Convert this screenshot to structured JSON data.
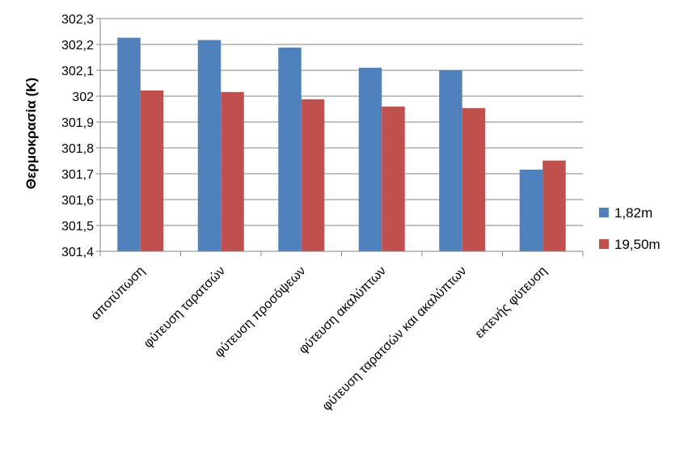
{
  "chart_data": {
    "type": "bar",
    "categories": [
      "αποτύπωση",
      "φύτευση ταρατσών",
      "φύτευση προσόψεων",
      "φύτευση ακαλύπτων",
      "φύτευση ταρατσών και ακαλύπτων",
      "εκτενής φύτευση"
    ],
    "series": [
      {
        "name": "1,82m",
        "color": "#4f81bd",
        "values": [
          302.226,
          302.217,
          302.188,
          302.11,
          302.1,
          301.716
        ]
      },
      {
        "name": "19,50m",
        "color": "#c0504d",
        "values": [
          302.022,
          302.016,
          301.988,
          301.96,
          301.954,
          301.751
        ]
      }
    ],
    "ylabel": "Θερμοκρασία (K)",
    "ylim": [
      301.4,
      302.3
    ],
    "yticks": [
      "301,4",
      "301,5",
      "301,6",
      "301,7",
      "301,8",
      "301,9",
      "302",
      "302,1",
      "302,2",
      "302,3"
    ],
    "grid": true,
    "legend": "right"
  }
}
